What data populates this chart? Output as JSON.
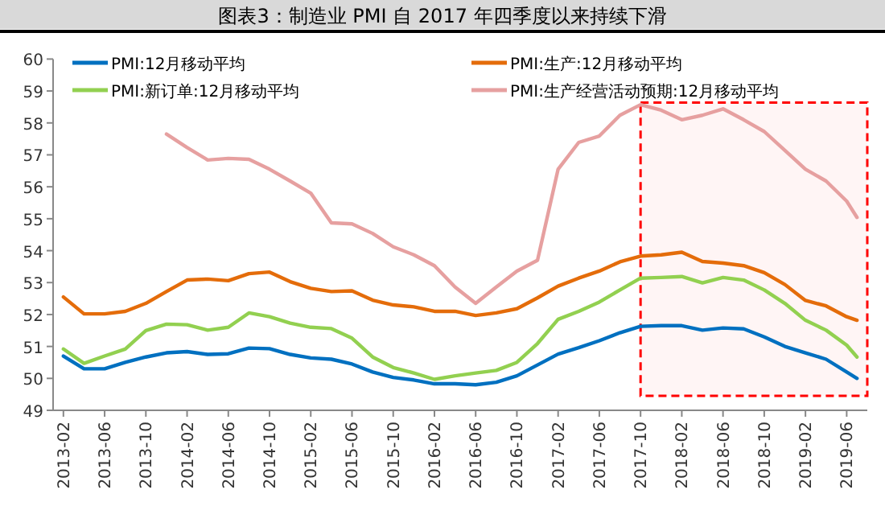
{
  "chart_data": {
    "type": "line",
    "title": "图表3：制造业 PMI 自 2017 年四季度以来持续下滑",
    "x": [
      "2013-02",
      "2013-04",
      "2013-06",
      "2013-08",
      "2013-10",
      "2013-12",
      "2014-02",
      "2014-04",
      "2014-06",
      "2014-08",
      "2014-10",
      "2014-12",
      "2015-02",
      "2015-04",
      "2015-06",
      "2015-08",
      "2015-10",
      "2015-12",
      "2016-02",
      "2016-04",
      "2016-06",
      "2016-08",
      "2016-10",
      "2016-12",
      "2017-02",
      "2017-04",
      "2017-06",
      "2017-08",
      "2017-10",
      "2017-12",
      "2018-02",
      "2018-04",
      "2018-06",
      "2018-08",
      "2018-10",
      "2018-12",
      "2019-02",
      "2019-04",
      "2019-06",
      "2019-07"
    ],
    "series": [
      {
        "name": "PMI:12月移动平均",
        "color": "#0070c0",
        "values": [
          50.7,
          50.3,
          50.3,
          50.5,
          50.67,
          50.8,
          50.84,
          50.75,
          50.77,
          50.95,
          50.93,
          50.75,
          50.64,
          50.6,
          50.45,
          50.2,
          50.03,
          49.95,
          49.83,
          49.83,
          49.8,
          49.88,
          50.08,
          50.42,
          50.76,
          50.96,
          51.18,
          51.43,
          51.63,
          51.65,
          51.65,
          51.51,
          51.58,
          51.55,
          51.3,
          51.0,
          50.8,
          50.6,
          50.2,
          50.0
        ]
      },
      {
        "name": "PMI:生产:12月移动平均",
        "color": "#e46c0a",
        "values": [
          52.55,
          52.02,
          52.02,
          52.1,
          52.35,
          52.72,
          53.08,
          53.11,
          53.06,
          53.28,
          53.33,
          53.03,
          52.82,
          52.72,
          52.74,
          52.45,
          52.3,
          52.24,
          52.1,
          52.1,
          51.97,
          52.05,
          52.18,
          52.52,
          52.89,
          53.14,
          53.36,
          53.65,
          53.83,
          53.87,
          53.95,
          53.66,
          53.61,
          53.53,
          53.31,
          52.94,
          52.44,
          52.27,
          51.93,
          51.82
        ]
      },
      {
        "name": "PMI:新订单:12月移动平均",
        "color": "#92d050",
        "values": [
          50.92,
          50.47,
          50.7,
          50.92,
          51.5,
          51.7,
          51.68,
          51.51,
          51.6,
          52.05,
          51.93,
          51.73,
          51.6,
          51.56,
          51.26,
          50.67,
          50.34,
          50.17,
          49.97,
          50.08,
          50.17,
          50.25,
          50.5,
          51.09,
          51.85,
          52.1,
          52.39,
          52.77,
          53.14,
          53.16,
          53.19,
          52.99,
          53.16,
          53.08,
          52.77,
          52.35,
          51.82,
          51.51,
          51.04,
          50.67
        ]
      },
      {
        "name": "PMI:生产经营活动预期:12月移动平均",
        "color": "#e6a0a0",
        "values": [
          null,
          null,
          null,
          null,
          null,
          57.65,
          57.23,
          56.84,
          56.89,
          56.86,
          56.55,
          56.18,
          55.8,
          54.87,
          54.84,
          54.54,
          54.12,
          53.87,
          53.53,
          52.86,
          52.35,
          52.86,
          53.36,
          53.7,
          56.55,
          57.39,
          57.59,
          58.24,
          58.57,
          58.4,
          58.1,
          58.24,
          58.44,
          58.1,
          57.73,
          57.14,
          56.55,
          56.18,
          55.55,
          55.04
        ]
      }
    ],
    "xlim": [
      "2013-01",
      "2019-08"
    ],
    "xticks": [
      {
        "value": "2013-02",
        "label": "2013-02"
      },
      {
        "value": "2013-06",
        "label": "2013-06"
      },
      {
        "value": "2013-10",
        "label": "2013-10"
      },
      {
        "value": "2014-02",
        "label": "2014-02"
      },
      {
        "value": "2014-06",
        "label": "2014-06"
      },
      {
        "value": "2014-10",
        "label": "2014-10"
      },
      {
        "value": "2015-02",
        "label": "2015-02"
      },
      {
        "value": "2015-06",
        "label": "2015-06"
      },
      {
        "value": "2015-10",
        "label": "2015-10"
      },
      {
        "value": "2016-02",
        "label": "2016-02"
      },
      {
        "value": "2016-06",
        "label": "2016-06"
      },
      {
        "value": "2016-10",
        "label": "2016-10"
      },
      {
        "value": "2017-02",
        "label": "2017-02"
      },
      {
        "value": "2017-06",
        "label": "2017-06"
      },
      {
        "value": "2017-10",
        "label": "2017-10"
      },
      {
        "value": "2018-02",
        "label": "2018-02"
      },
      {
        "value": "2018-06",
        "label": "2018-06"
      },
      {
        "value": "2018-10",
        "label": "2018-10"
      },
      {
        "value": "2019-02",
        "label": "2019-02"
      },
      {
        "value": "2019-06",
        "label": "2019-06"
      }
    ],
    "ylim": [
      49,
      60
    ],
    "yticks": [
      49,
      50,
      51,
      52,
      53,
      54,
      55,
      56,
      57,
      58,
      59,
      60
    ],
    "bands": [
      {
        "axis": "x",
        "from": "2017-10",
        "to": "2019-08",
        "color": "#ff0000"
      }
    ],
    "legend": "top",
    "grid": false,
    "line_style": "solid",
    "marker": "none"
  }
}
